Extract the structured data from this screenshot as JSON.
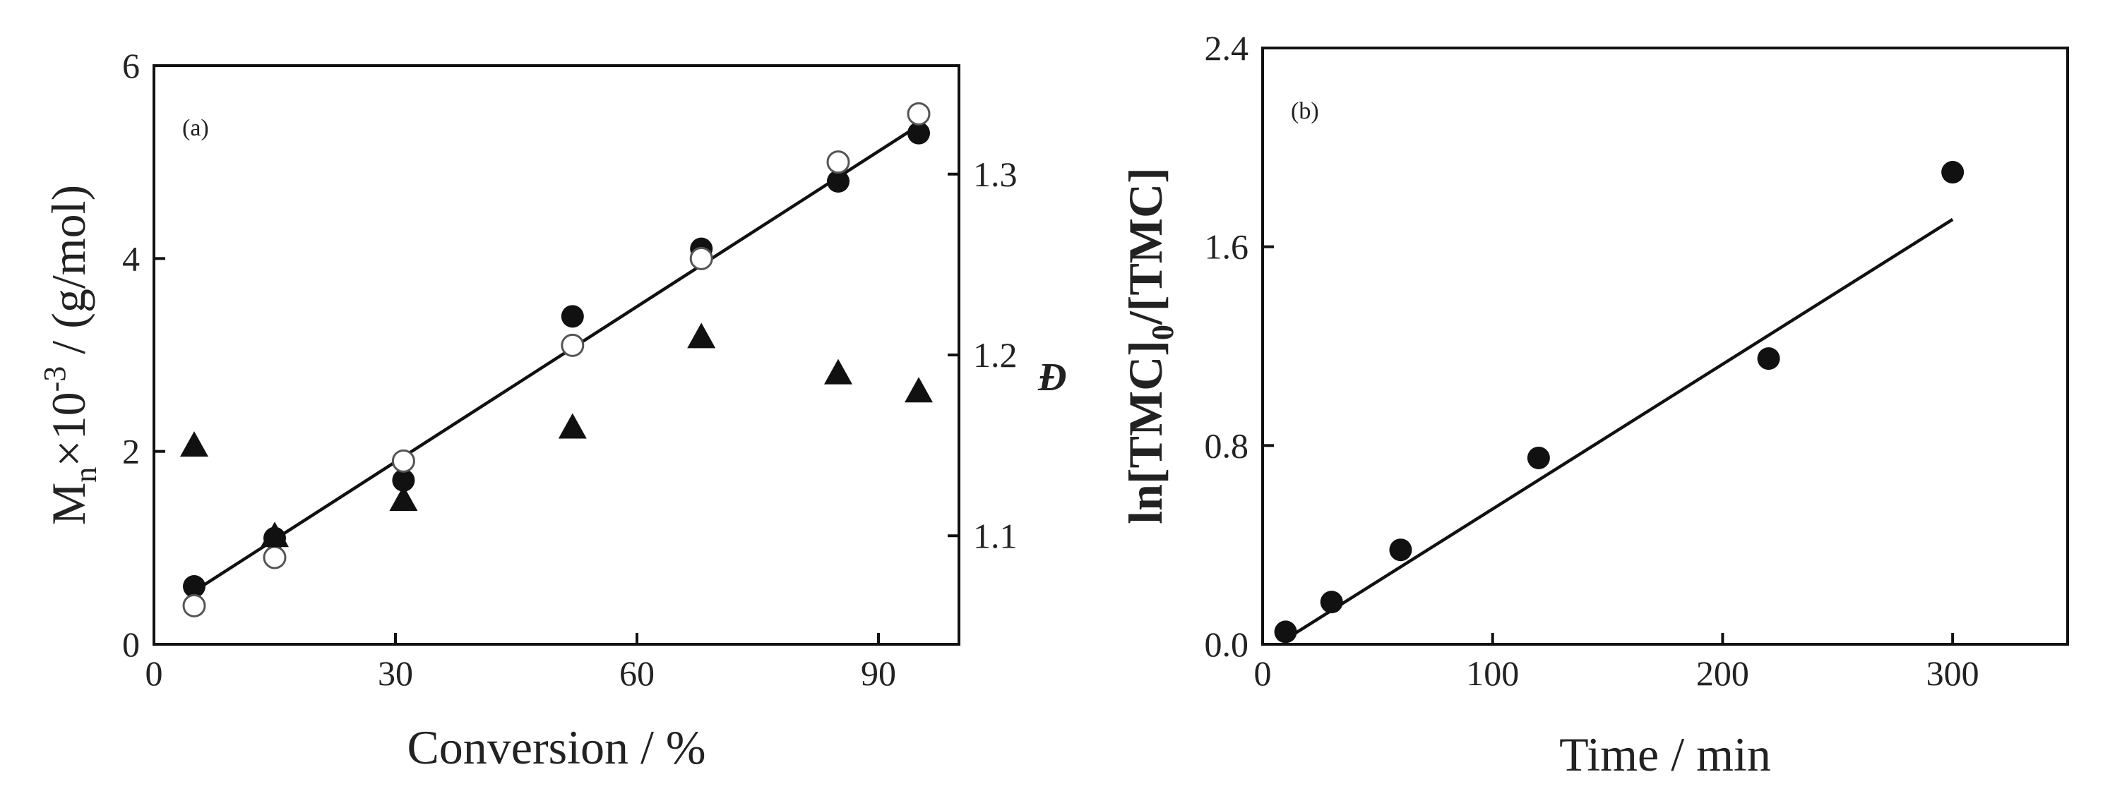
{
  "chart_data": [
    {
      "type": "scatter",
      "panel_label": "(a)",
      "xlabel": "Conversion / %",
      "ylabel": {
        "main": "M",
        "sub": "n",
        "mid": "×10",
        "sup": "-3",
        "tail": " / (g/mol)"
      },
      "y2label": "Đ",
      "xlim": [
        0,
        100
      ],
      "ylim": [
        0,
        6
      ],
      "y2lim": [
        1.04,
        1.36
      ],
      "xticks": [
        "0",
        "30",
        "60",
        "90"
      ],
      "xtick_values": [
        0,
        30,
        60,
        90
      ],
      "yticks": [
        "0",
        "2",
        "4",
        "6"
      ],
      "ytick_values": [
        0,
        2,
        4,
        6
      ],
      "y2ticks": [
        "1.1",
        "1.2",
        "1.3"
      ],
      "y2tick_values": [
        1.1,
        1.2,
        1.3
      ],
      "grid": false,
      "series": [
        {
          "marker": "filled-circle",
          "axis": "left",
          "x": [
            5,
            15,
            31,
            52,
            68,
            85,
            95
          ],
          "y": [
            0.6,
            1.1,
            1.7,
            3.4,
            4.1,
            4.8,
            5.3
          ]
        },
        {
          "marker": "open-circle",
          "axis": "left",
          "x": [
            5,
            15,
            31,
            52,
            68,
            85,
            95
          ],
          "y": [
            0.4,
            0.9,
            1.9,
            3.1,
            4.0,
            5.0,
            5.5
          ]
        },
        {
          "marker": "filled-triangle",
          "axis": "right",
          "x": [
            5,
            15,
            31,
            52,
            68,
            85,
            95
          ],
          "y": [
            1.15,
            1.1,
            1.12,
            1.16,
            1.21,
            1.19,
            1.18
          ]
        },
        {
          "marker": "line",
          "axis": "left",
          "x": [
            5,
            95
          ],
          "y": [
            0.55,
            5.38
          ]
        }
      ]
    },
    {
      "type": "scatter",
      "panel_label": "(b)",
      "xlabel": "Time / min",
      "ylabel": {
        "main": "ln[TMC]",
        "sub": "0",
        "tail": "/[TMC]"
      },
      "xlim": [
        0,
        350
      ],
      "ylim": [
        0,
        2.4
      ],
      "xticks": [
        "0",
        "100",
        "200",
        "300"
      ],
      "xtick_values": [
        0,
        100,
        200,
        300
      ],
      "yticks": [
        "0.0",
        "0.8",
        "1.6",
        "2.4"
      ],
      "ytick_values": [
        0,
        0.8,
        1.6,
        2.4
      ],
      "grid": false,
      "series": [
        {
          "marker": "filled-circle",
          "x": [
            10,
            30,
            60,
            120,
            220,
            300
          ],
          "y": [
            0.05,
            0.17,
            0.38,
            0.75,
            1.15,
            1.9
          ]
        },
        {
          "marker": "line",
          "x": [
            10,
            300
          ],
          "y": [
            0.02,
            1.71
          ]
        }
      ]
    }
  ]
}
